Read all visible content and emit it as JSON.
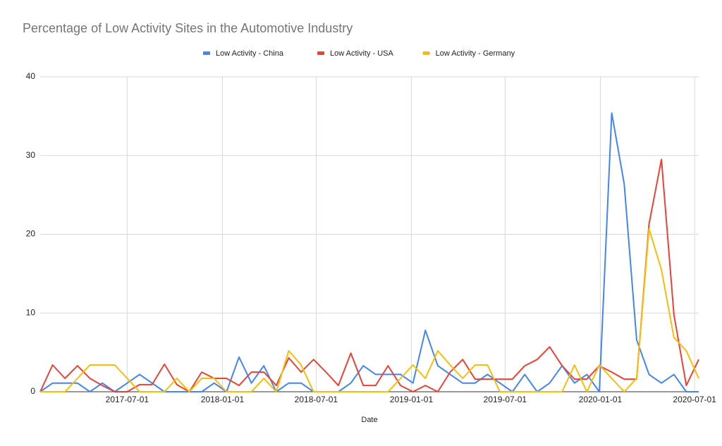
{
  "chart_data": {
    "type": "line",
    "title": "Percentage of Low Activity Sites in the Automotive Industry",
    "x_label": "Date",
    "x": [
      "2017-01-14",
      "2017-02-07",
      "2017-03-03",
      "2017-03-27",
      "2017-04-20",
      "2017-05-14",
      "2017-06-07",
      "2017-07-01",
      "2017-07-25",
      "2017-08-18",
      "2017-09-11",
      "2017-10-05",
      "2017-10-29",
      "2017-11-22",
      "2017-12-16",
      "2018-01-09",
      "2018-02-02",
      "2018-02-26",
      "2018-03-22",
      "2018-04-15",
      "2018-05-09",
      "2018-06-02",
      "2018-06-26",
      "2018-07-20",
      "2018-08-13",
      "2018-09-06",
      "2018-09-30",
      "2018-10-24",
      "2018-11-17",
      "2018-12-11",
      "2019-01-04",
      "2019-01-28",
      "2019-02-21",
      "2019-03-17",
      "2019-04-10",
      "2019-05-04",
      "2019-05-28",
      "2019-06-21",
      "2019-07-15",
      "2019-08-08",
      "2019-09-01",
      "2019-09-25",
      "2019-10-19",
      "2019-11-12",
      "2019-12-06",
      "2019-12-30",
      "2020-01-23",
      "2020-02-16",
      "2020-03-11",
      "2020-04-04",
      "2020-04-28",
      "2020-05-22",
      "2020-06-15",
      "2020-07-09"
    ],
    "series": [
      {
        "name": "Low Activity - China",
        "color": "#4285f4",
        "values": [
          0,
          1.1,
          1.1,
          1.1,
          0,
          1.1,
          0,
          1.1,
          2.2,
          1.1,
          0,
          0,
          0,
          0,
          1.1,
          0,
          4.4,
          1.1,
          3.3,
          0,
          1.1,
          1.1,
          0,
          0,
          0,
          1.1,
          3.3,
          2.2,
          2.2,
          2.2,
          1.1,
          7.8,
          3.3,
          2.2,
          1.1,
          1.1,
          2.2,
          1.1,
          0,
          2.2,
          0,
          1.1,
          3.3,
          1.1,
          2.2,
          0,
          35.4,
          26.4,
          6.6,
          2.2,
          1.1,
          2.2,
          0,
          0
        ]
      },
      {
        "name": "Low Activity - USA",
        "color": "#ea4335",
        "values": [
          0,
          3.4,
          1.7,
          3.3,
          1.7,
          0.8,
          0,
          0,
          0.9,
          0.9,
          3.5,
          0.9,
          0,
          2.5,
          1.7,
          1.7,
          0.8,
          2.5,
          2.5,
          0.8,
          4.3,
          2.5,
          4.1,
          2.5,
          0.8,
          4.9,
          0.8,
          0.8,
          3.3,
          0.8,
          0,
          0.8,
          0,
          2.5,
          4.1,
          1.6,
          1.6,
          1.6,
          1.6,
          3.3,
          4.1,
          5.7,
          3.3,
          1.6,
          1.6,
          3.3,
          2.5,
          1.6,
          1.6,
          21.3,
          29.5,
          9.8,
          0.8,
          4.1
        ]
      },
      {
        "name": "Low Activity - Germany",
        "color": "#fbbc04",
        "values": [
          0,
          0,
          0,
          1.7,
          3.4,
          3.4,
          3.4,
          1.7,
          0,
          0,
          0,
          1.7,
          0,
          1.7,
          1.7,
          0,
          0,
          0,
          1.7,
          0,
          5.2,
          3.4,
          0,
          0,
          0,
          0,
          0,
          0,
          0,
          1.7,
          3.4,
          1.7,
          5.2,
          3.4,
          1.7,
          3.4,
          3.4,
          0,
          0,
          0,
          0,
          0,
          0,
          3.4,
          0,
          3.4,
          1.7,
          0,
          1.7,
          20.7,
          15.5,
          6.9,
          5.2,
          1.7
        ]
      }
    ],
    "xlim": [
      "2017-01-14",
      "2020-07-09"
    ],
    "xticks": [
      "2017-07-01",
      "2018-01-01",
      "2018-07-01",
      "2019-01-01",
      "2019-07-01",
      "2020-01-01",
      "2020-07-01"
    ],
    "ylim": [
      0,
      40
    ],
    "yticks": [
      0,
      10,
      20,
      30,
      40
    ],
    "grid": true,
    "legend": "top"
  }
}
